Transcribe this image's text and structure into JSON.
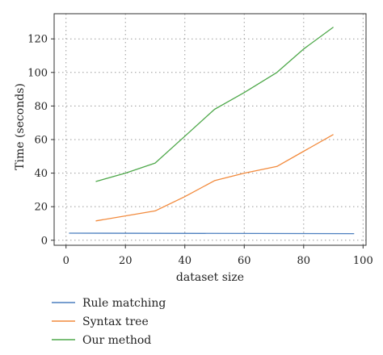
{
  "chart_data": {
    "type": "line",
    "xlabel": "dataset size",
    "ylabel": "Time (seconds)",
    "xlim": [
      -4,
      101
    ],
    "ylim": [
      -3,
      135
    ],
    "xticks": [
      0,
      20,
      40,
      60,
      80,
      100
    ],
    "yticks": [
      0,
      20,
      40,
      60,
      80,
      100,
      120
    ],
    "grid": true,
    "legend_position": "bottom-left",
    "series": [
      {
        "name": "Rule matching",
        "color": "#4c7fbf",
        "x": [
          1,
          97
        ],
        "y": [
          4.2,
          3.9
        ]
      },
      {
        "name": "Syntax tree",
        "color": "#f28a3c",
        "x": [
          10,
          30,
          40,
          50,
          60,
          71,
          80,
          90
        ],
        "y": [
          11.5,
          17.5,
          26,
          35.5,
          40,
          44,
          53,
          63
        ]
      },
      {
        "name": "Our method",
        "color": "#4ea84a",
        "x": [
          10,
          20,
          30,
          40,
          50,
          60,
          71,
          80,
          90
        ],
        "y": [
          35,
          40,
          46,
          62,
          78,
          88,
          100,
          114,
          127
        ]
      }
    ]
  }
}
